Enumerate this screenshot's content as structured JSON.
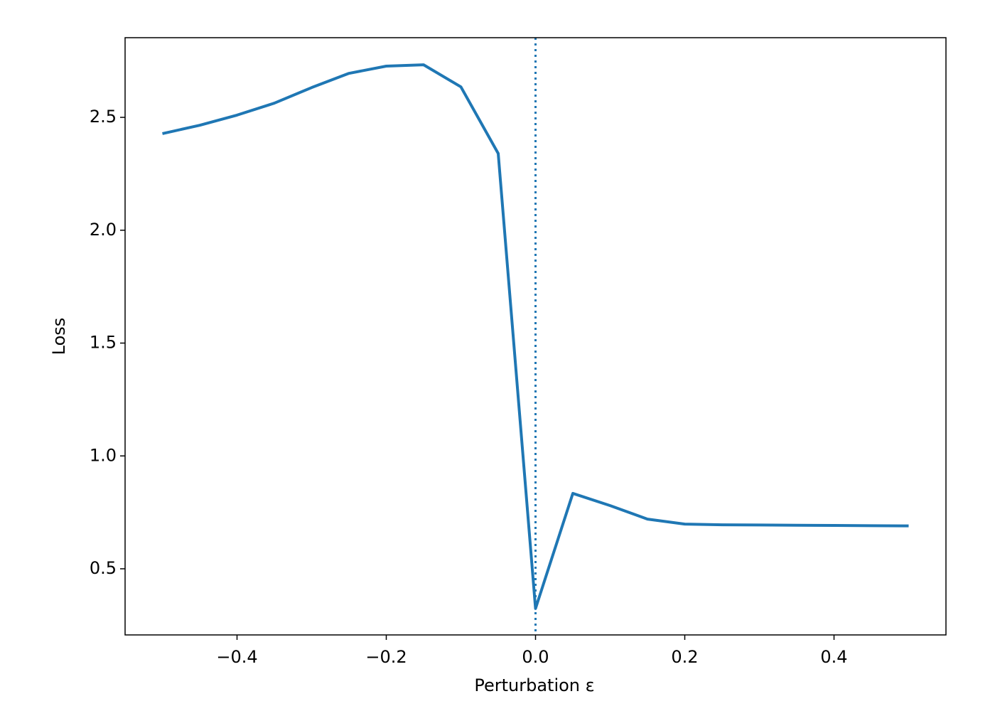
{
  "chart_data": {
    "type": "line",
    "xlabel": "Perturbation ε",
    "ylabel": "Loss",
    "x": [
      -0.5,
      -0.45,
      -0.4,
      -0.35,
      -0.3,
      -0.25,
      -0.2,
      -0.15,
      -0.1,
      -0.05,
      0,
      0.05,
      0.1,
      0.15,
      0.2,
      0.25,
      0.3,
      0.35,
      0.4,
      0.45,
      0.5
    ],
    "series": [
      {
        "color": "#1f77b4",
        "values": [
          2.428,
          2.465,
          2.51,
          2.563,
          2.632,
          2.695,
          2.727,
          2.733,
          2.635,
          2.34,
          0.324,
          0.834,
          0.78,
          0.72,
          0.698,
          0.695,
          0.694,
          0.693,
          0.692,
          0.691,
          0.69
        ]
      }
    ],
    "vline": 0,
    "xlim": [
      -0.55,
      0.55
    ],
    "ylim": [
      0.207,
      2.853
    ],
    "xticks": [
      {
        "value": -0.4,
        "label": "−0.4"
      },
      {
        "value": -0.2,
        "label": "−0.2"
      },
      {
        "value": 0,
        "label": "0.0"
      },
      0.2,
      0.4
    ],
    "yticks": [
      0.5,
      {
        "value": 1,
        "label": "1.0"
      },
      1.5,
      {
        "value": 2,
        "label": "2.0"
      },
      2.5
    ],
    "grid": false
  }
}
